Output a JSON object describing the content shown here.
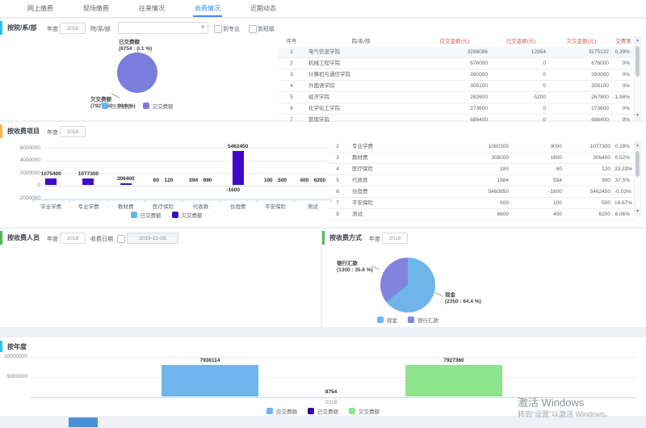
{
  "tabs": {
    "items": [
      {
        "label": "网上缴费",
        "active": false
      },
      {
        "label": "现场缴费",
        "active": false
      },
      {
        "label": "往来情况",
        "active": false
      },
      {
        "label": "收费情况",
        "active": true
      },
      {
        "label": "近期动态",
        "active": false
      }
    ]
  },
  "colors": {
    "active_tab": "#3d8af2",
    "accent1": "#25c2ef",
    "accent2": "#ffb44f",
    "accent3": "#53b556",
    "accent4": "#53b556",
    "accent5": "#2fc3e8",
    "paid_light_blue": "#63b2ee",
    "unpaid_purple": "#7b7ddc",
    "bar_indigo": "#4209c9",
    "due_blue": "#6eb4ef",
    "paid_dark": "#2b0aa6",
    "unpaid_green": "#8ce58a",
    "cash_blue": "#6fb5ea",
    "bank_purple": "#8084dd",
    "header_red": "#c9605c"
  },
  "sec_dept": {
    "title": "按院/系/部",
    "year_label": "年度",
    "year_value": "2018",
    "dept_label": "院/系/部",
    "dept_selected": "",
    "to_major": "到专业",
    "to_class": "到班级",
    "chart_data": {
      "type": "pie",
      "slices": [
        {
          "name": "已交费额",
          "value": 8754,
          "pct": 0.1
        },
        {
          "name": "欠交费额",
          "value": 7927360,
          "pct": 99.9
        }
      ],
      "callouts": {
        "top_name": "已交费额",
        "top_detail": "(8754 : 0.1 %)",
        "bottom_name": "欠交费额",
        "bottom_detail": "(7927360 : 99.9 %)"
      },
      "legend": [
        "已交费额",
        "欠交费额"
      ],
      "legend_position": "bottom"
    },
    "table": {
      "headers": [
        "序号",
        "院/系/部",
        "应交金额(元)",
        "已交金额(元)",
        "欠交金额(元)",
        "交费率"
      ],
      "rows": [
        [
          "1",
          "电气信息学院",
          "3288086",
          "12954",
          "3275132",
          "0.39%"
        ],
        [
          "2",
          "机械工程学院",
          "676000",
          "0",
          "676000",
          "0%"
        ],
        [
          "3",
          "计算机与通信学院",
          "390000",
          "0",
          "390000",
          "0%"
        ],
        [
          "4",
          "外国语学院",
          "308100",
          "0",
          "308100",
          "0%"
        ],
        [
          "5",
          "经济学院",
          "262600",
          "-5200",
          "267800",
          "-1.98%"
        ],
        [
          "6",
          "化学化工学院",
          "273600",
          "0",
          "273600",
          "0%"
        ],
        [
          "7",
          "管理学院",
          "686400",
          "0",
          "686400",
          "0%"
        ]
      ]
    }
  },
  "sec_items": {
    "title": "按收费项目",
    "year_label": "年度",
    "year_value": "2018",
    "chart_data": {
      "type": "bar",
      "categories": [
        "学业学费",
        "专业学费",
        "教材费",
        "医疗保险",
        "代收款",
        "住宿费",
        "平安保险",
        "测试"
      ],
      "series": [
        {
          "name": "已交费额",
          "values": [
            0,
            3000,
            1600,
            60,
            594,
            -1600,
            100,
            400
          ]
        },
        {
          "name": "欠交费额",
          "values": [
            1075400,
            1077300,
            306400,
            120,
            990,
            5462450,
            500,
            6200
          ]
        }
      ],
      "bar_labels": [
        [
          "",
          "1075400"
        ],
        [
          "",
          "1077300"
        ],
        [
          "",
          "306400"
        ],
        [
          "60",
          "120"
        ],
        [
          "594",
          "990"
        ],
        [
          "-1600",
          "5462450"
        ],
        [
          "100",
          "500"
        ],
        [
          "400",
          "6200"
        ]
      ],
      "yticks": [
        6000000,
        4000000,
        2000000,
        0,
        -2000000
      ],
      "ylim": [
        -2000000,
        6000000
      ],
      "legend": [
        "已交费额",
        "欠交费额"
      ],
      "legend_position": "bottom"
    },
    "table": {
      "rows": [
        [
          "2",
          "专业学费",
          "1080300",
          "3000",
          "1077300",
          "0.28%"
        ],
        [
          "3",
          "教材费",
          "308000",
          "1600",
          "306400",
          "0.52%"
        ],
        [
          "4",
          "医疗保险",
          "180",
          "60",
          "120",
          "33.33%"
        ],
        [
          "5",
          "代收款",
          "1584",
          "594",
          "990",
          "37.5%"
        ],
        [
          "6",
          "住宿费",
          "5460850",
          "-1600",
          "5462450",
          "-0.03%"
        ],
        [
          "7",
          "平安保险",
          "600",
          "100",
          "500",
          "16.67%"
        ],
        [
          "8",
          "测试",
          "6600",
          "400",
          "6200",
          "6.06%"
        ]
      ]
    }
  },
  "sec_staff": {
    "title": "按收费人员",
    "year_label": "年度",
    "year_value": "2018",
    "date_label": "收费日期",
    "date_value": "2019-12-05"
  },
  "sec_method": {
    "title": "按收费方式",
    "year_label": "年度",
    "year_value": "2018",
    "chart_data": {
      "type": "pie",
      "slices": [
        {
          "name": "现金",
          "value": 2350,
          "pct": 64.4
        },
        {
          "name": "银行汇款",
          "value": 1300,
          "pct": 35.6
        }
      ],
      "callouts": {
        "left_name": "银行汇款",
        "left_detail": "(1300 : 35.6 %)",
        "right_name": "现金",
        "right_detail": "(2350 : 64.4 %)"
      },
      "legend": [
        "现金",
        "银行汇款"
      ],
      "legend_position": "bottom"
    }
  },
  "sec_year": {
    "title": "按年度",
    "chart_data": {
      "type": "bar",
      "categories": [
        "2018"
      ],
      "series": [
        {
          "name": "应交费额",
          "values": [
            7936114
          ]
        },
        {
          "name": "已交费额",
          "values": [
            8754
          ]
        },
        {
          "name": "欠交费额",
          "values": [
            7927360
          ]
        }
      ],
      "bar_labels": [
        "7936114",
        "8754",
        "7927360"
      ],
      "yticks": [
        10000000,
        5000000
      ],
      "ylim": [
        0,
        10000000
      ],
      "legend": [
        "应交费额",
        "已交费额",
        "欠交费额"
      ],
      "legend_position": "bottom"
    }
  },
  "watermark": {
    "line1": "激活 Windows",
    "line2": "转到“设置”以激活 Windows。"
  }
}
